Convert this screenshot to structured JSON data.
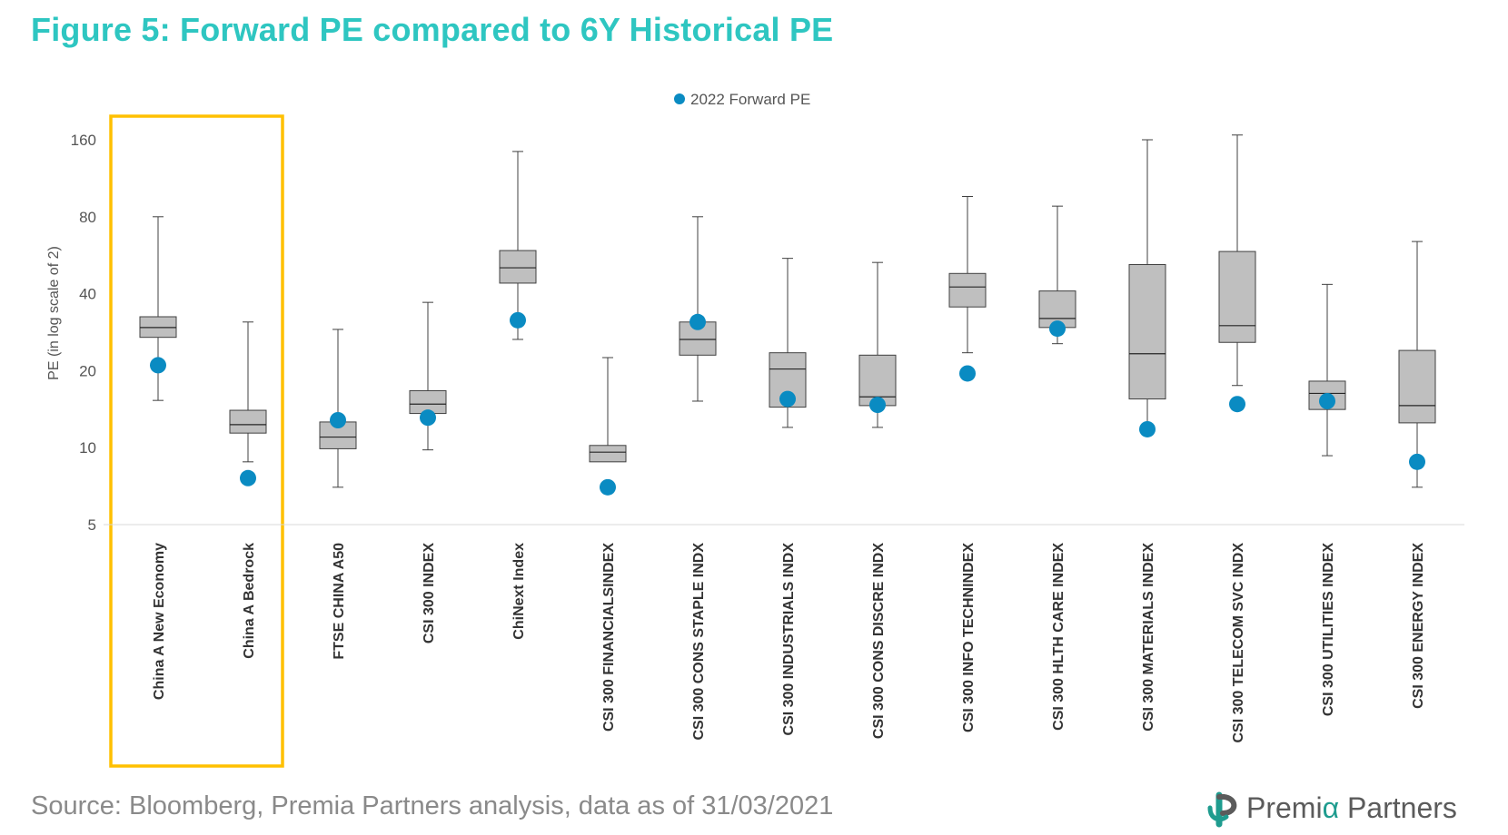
{
  "title": "Figure 5: Forward PE compared to 6Y Historical PE",
  "source": "Source: Bloomberg, Premia Partners analysis, data as of 31/03/2021",
  "logo": {
    "name_part1": "Premi",
    "name_accent": "α",
    "name_part2": " Partners"
  },
  "colors": {
    "title": "#2ec6c1",
    "box_fill": "#bfbfbf",
    "dot": "#0a8bc2",
    "highlight": "#ffc000"
  },
  "chart_data": {
    "type": "box",
    "ylabel": "PE (in log scale of 2)",
    "yscale": "log2",
    "ylim": [
      5,
      160
    ],
    "yticks": [
      160,
      80,
      40,
      20,
      10,
      5
    ],
    "legend": {
      "label": "2022 Forward PE",
      "placement": "top-center"
    },
    "highlighted_categories": [
      "China A New Economy",
      "China A Bedrock"
    ],
    "categories": [
      "China A New Economy",
      "China A Bedrock",
      "FTSE CHINA A50",
      "CSI 300 INDEX",
      "ChiNext Index",
      "CSI 300 FINANCIALSINDEX",
      "CSI 300 CONS STAPLE INDX",
      "CSI 300 INDUSTRIALS INDX",
      "CSI 300 CONS DISCRE INDX",
      "CSI 300 INFO TECHNINDEX",
      "CSI 300 HLTH CARE INDEX",
      "CSI 300 MATERIALS INDEX",
      "CSI 300 TELECOM SVC INDX",
      "CSI 300 UTILITIES INDEX",
      "CSI 300 ENERGY INDEX"
    ],
    "series": [
      {
        "name": "6Y Historical PE",
        "min": [
          15.3,
          8.8,
          7.0,
          9.8,
          26.5,
          0,
          15.2,
          12.0,
          12.0,
          23.5,
          25.5,
          12.0,
          17.5,
          9.3,
          7.0
        ],
        "q1": [
          27.0,
          11.4,
          9.9,
          13.6,
          44.0,
          8.8,
          23.0,
          14.4,
          14.6,
          35.5,
          29.5,
          15.5,
          25.8,
          14.1,
          12.5
        ],
        "median": [
          29.5,
          12.3,
          11.0,
          14.8,
          50.5,
          9.6,
          26.5,
          20.3,
          15.8,
          42.5,
          32.0,
          23.3,
          30.0,
          16.3,
          14.6
        ],
        "q3": [
          32.5,
          14.0,
          12.6,
          16.7,
          59.0,
          10.2,
          31.0,
          23.5,
          23.0,
          48.0,
          41.0,
          52.0,
          58.5,
          18.2,
          24.0
        ],
        "max": [
          80.0,
          31.0,
          29.0,
          37.0,
          144.0,
          22.5,
          80.0,
          55.0,
          53.0,
          96.0,
          88.0,
          160.0,
          167.0,
          43.5,
          64.0
        ]
      },
      {
        "name": "2022 Forward PE",
        "values": [
          21.0,
          7.6,
          12.8,
          13.1,
          31.5,
          7.0,
          31.0,
          15.5,
          14.7,
          19.5,
          29.2,
          11.8,
          14.8,
          15.2,
          8.8
        ]
      }
    ]
  }
}
